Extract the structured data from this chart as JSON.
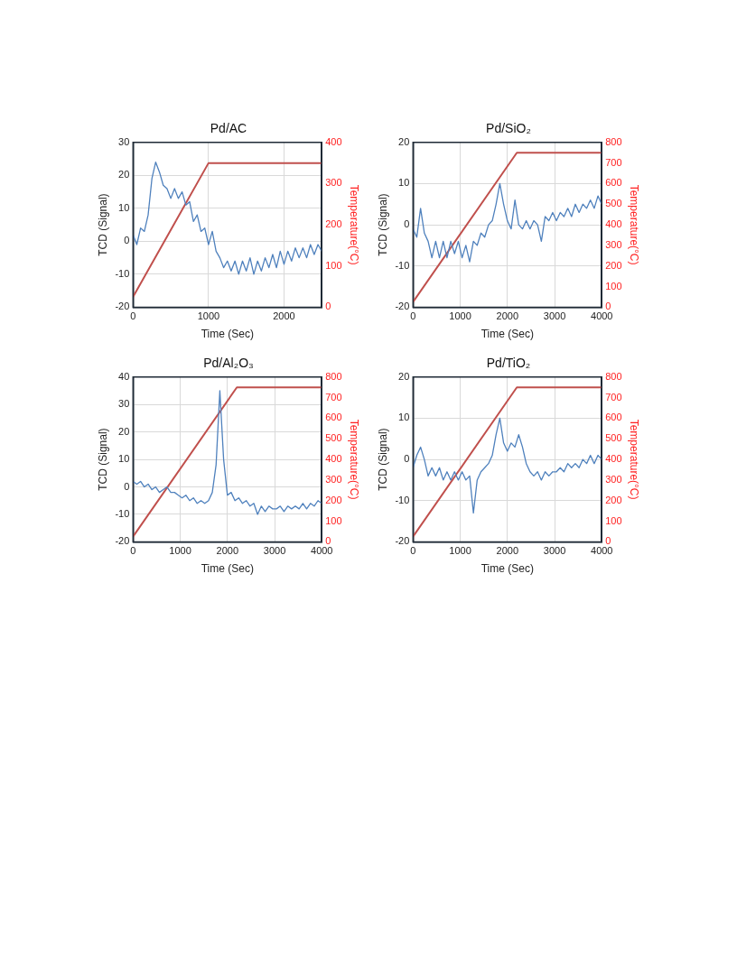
{
  "chart_data": [
    {
      "type": "line",
      "title": "Pd/AC",
      "xlabel": "Time (Sec)",
      "ylabel": "TCD (Signal)",
      "y2label": "Temperature(°C)",
      "xlim": [
        0,
        2500
      ],
      "xticks": [
        0,
        1000,
        2000
      ],
      "ylim": [
        -20,
        30
      ],
      "yticks": [
        -20,
        -10,
        0,
        10,
        20,
        30
      ],
      "y2lim": [
        0,
        400
      ],
      "y2ticks": [
        0,
        100,
        200,
        300,
        400
      ],
      "grid": true,
      "marker": "none",
      "series": [
        {
          "color": "#4f81bd",
          "x": [
            0,
            50,
            100,
            150,
            200,
            250,
            300,
            350,
            400,
            450,
            500,
            550,
            600,
            650,
            700,
            750,
            800,
            850,
            900,
            950,
            1000,
            1050,
            1100,
            1150,
            1200,
            1250,
            1300,
            1350,
            1400,
            1450,
            1500,
            1550,
            1600,
            1650,
            1700,
            1750,
            1800,
            1850,
            1900,
            1950,
            2000,
            2050,
            2100,
            2150,
            2200,
            2250,
            2300,
            2350,
            2400,
            2450,
            2500
          ],
          "values": [
            2,
            -1,
            4,
            3,
            8,
            19,
            24,
            21,
            17,
            16,
            13,
            16,
            13,
            15,
            11,
            12,
            6,
            8,
            3,
            4,
            -1,
            3,
            -3,
            -5,
            -8,
            -6,
            -9,
            -6,
            -10,
            -6,
            -9,
            -5,
            -10,
            -6,
            -9,
            -5,
            -8,
            -4,
            -8,
            -3,
            -7,
            -3,
            -6,
            -2,
            -5,
            -2,
            -5,
            -1,
            -4,
            -1,
            -3
          ]
        },
        {
          "color": "#c0504d",
          "axis": "y2",
          "x": [
            0,
            1000,
            2500
          ],
          "values": [
            25,
            350,
            350
          ]
        }
      ]
    },
    {
      "type": "line",
      "title": "Pd/SiO₂",
      "xlabel": "Time (Sec)",
      "ylabel": "TCD (Signal)",
      "y2label": "Temperature(°C)",
      "xlim": [
        0,
        4000
      ],
      "xticks": [
        0,
        1000,
        2000,
        3000,
        4000
      ],
      "ylim": [
        -20,
        20
      ],
      "yticks": [
        -20,
        -10,
        0,
        10,
        20
      ],
      "y2lim": [
        0,
        800
      ],
      "y2ticks": [
        0,
        100,
        200,
        300,
        400,
        500,
        600,
        700,
        800
      ],
      "grid": true,
      "marker": "none",
      "series": [
        {
          "color": "#4f81bd",
          "x": [
            0,
            80,
            160,
            240,
            320,
            400,
            480,
            560,
            640,
            720,
            800,
            880,
            960,
            1040,
            1120,
            1200,
            1280,
            1360,
            1440,
            1520,
            1600,
            1680,
            1760,
            1840,
            1920,
            2000,
            2080,
            2160,
            2240,
            2320,
            2400,
            2480,
            2560,
            2640,
            2720,
            2800,
            2880,
            2960,
            3040,
            3120,
            3200,
            3280,
            3360,
            3440,
            3520,
            3600,
            3680,
            3760,
            3840,
            3920,
            4000
          ],
          "values": [
            -1,
            -3,
            4,
            -2,
            -4,
            -8,
            -4,
            -8,
            -4,
            -8,
            -4,
            -7,
            -4,
            -8,
            -5,
            -9,
            -4,
            -5,
            -2,
            -3,
            0,
            1,
            5,
            10,
            5,
            1,
            -1,
            6,
            0,
            -1,
            1,
            -1,
            1,
            0,
            -4,
            2,
            1,
            3,
            1,
            3,
            2,
            4,
            2,
            5,
            3,
            5,
            4,
            6,
            4,
            7,
            5
          ]
        },
        {
          "color": "#c0504d",
          "axis": "y2",
          "x": [
            0,
            2200,
            4000
          ],
          "values": [
            25,
            750,
            750
          ]
        }
      ]
    },
    {
      "type": "line",
      "title": "Pd/Al₂O₃",
      "xlabel": "Time (Sec)",
      "ylabel": "TCD (Signal)",
      "y2label": "Temperature(°C)",
      "xlim": [
        0,
        4000
      ],
      "xticks": [
        0,
        1000,
        2000,
        3000,
        4000
      ],
      "ylim": [
        -20,
        40
      ],
      "yticks": [
        -20,
        -10,
        0,
        10,
        20,
        30,
        40
      ],
      "y2lim": [
        0,
        800
      ],
      "y2ticks": [
        0,
        100,
        200,
        300,
        400,
        500,
        600,
        700,
        800
      ],
      "grid": true,
      "marker": "none",
      "series": [
        {
          "color": "#4f81bd",
          "x": [
            0,
            80,
            160,
            240,
            320,
            400,
            480,
            560,
            640,
            720,
            800,
            880,
            960,
            1040,
            1120,
            1200,
            1280,
            1360,
            1440,
            1520,
            1600,
            1680,
            1760,
            1840,
            1920,
            2000,
            2080,
            2160,
            2240,
            2320,
            2400,
            2480,
            2560,
            2640,
            2720,
            2800,
            2880,
            2960,
            3040,
            3120,
            3200,
            3280,
            3360,
            3440,
            3520,
            3600,
            3680,
            3760,
            3840,
            3920,
            4000
          ],
          "values": [
            2,
            1,
            2,
            0,
            1,
            -1,
            0,
            -2,
            -1,
            0,
            -2,
            -2,
            -3,
            -4,
            -3,
            -5,
            -4,
            -6,
            -5,
            -6,
            -5,
            -2,
            8,
            35,
            10,
            -3,
            -2,
            -5,
            -4,
            -6,
            -5,
            -7,
            -6,
            -10,
            -7,
            -9,
            -7,
            -8,
            -8,
            -7,
            -9,
            -7,
            -8,
            -7,
            -8,
            -6,
            -8,
            -6,
            -7,
            -5,
            -6
          ]
        },
        {
          "color": "#c0504d",
          "axis": "y2",
          "x": [
            0,
            2200,
            4000
          ],
          "values": [
            25,
            750,
            750
          ]
        }
      ]
    },
    {
      "type": "line",
      "title": "Pd/TiO₂",
      "xlabel": "Time (Sec)",
      "ylabel": "TCD (Signal)",
      "y2label": "Temperature(°C)",
      "xlim": [
        0,
        4000
      ],
      "xticks": [
        0,
        1000,
        2000,
        3000,
        4000
      ],
      "ylim": [
        -20,
        20
      ],
      "yticks": [
        -20,
        -10,
        0,
        10,
        20
      ],
      "y2lim": [
        0,
        800
      ],
      "y2ticks": [
        0,
        100,
        200,
        300,
        400,
        500,
        600,
        700,
        800
      ],
      "grid": true,
      "marker": "none",
      "series": [
        {
          "color": "#4f81bd",
          "x": [
            0,
            80,
            160,
            240,
            320,
            400,
            480,
            560,
            640,
            720,
            800,
            880,
            960,
            1040,
            1120,
            1200,
            1280,
            1360,
            1440,
            1520,
            1600,
            1680,
            1760,
            1840,
            1920,
            2000,
            2080,
            2160,
            2240,
            2320,
            2400,
            2480,
            2560,
            2640,
            2720,
            2800,
            2880,
            2960,
            3040,
            3120,
            3200,
            3280,
            3360,
            3440,
            3520,
            3600,
            3680,
            3760,
            3840,
            3920,
            4000
          ],
          "values": [
            -2,
            1,
            3,
            0,
            -4,
            -2,
            -4,
            -2,
            -5,
            -3,
            -5,
            -3,
            -5,
            -3,
            -5,
            -4,
            -13,
            -5,
            -3,
            -2,
            -1,
            1,
            6,
            10,
            4,
            2,
            4,
            3,
            6,
            3,
            -1,
            -3,
            -4,
            -3,
            -5,
            -3,
            -4,
            -3,
            -3,
            -2,
            -3,
            -1,
            -2,
            -1,
            -2,
            0,
            -1,
            1,
            -1,
            1,
            0
          ]
        },
        {
          "color": "#c0504d",
          "axis": "y2",
          "x": [
            0,
            2200,
            4000
          ],
          "values": [
            25,
            750,
            750
          ]
        }
      ]
    }
  ]
}
